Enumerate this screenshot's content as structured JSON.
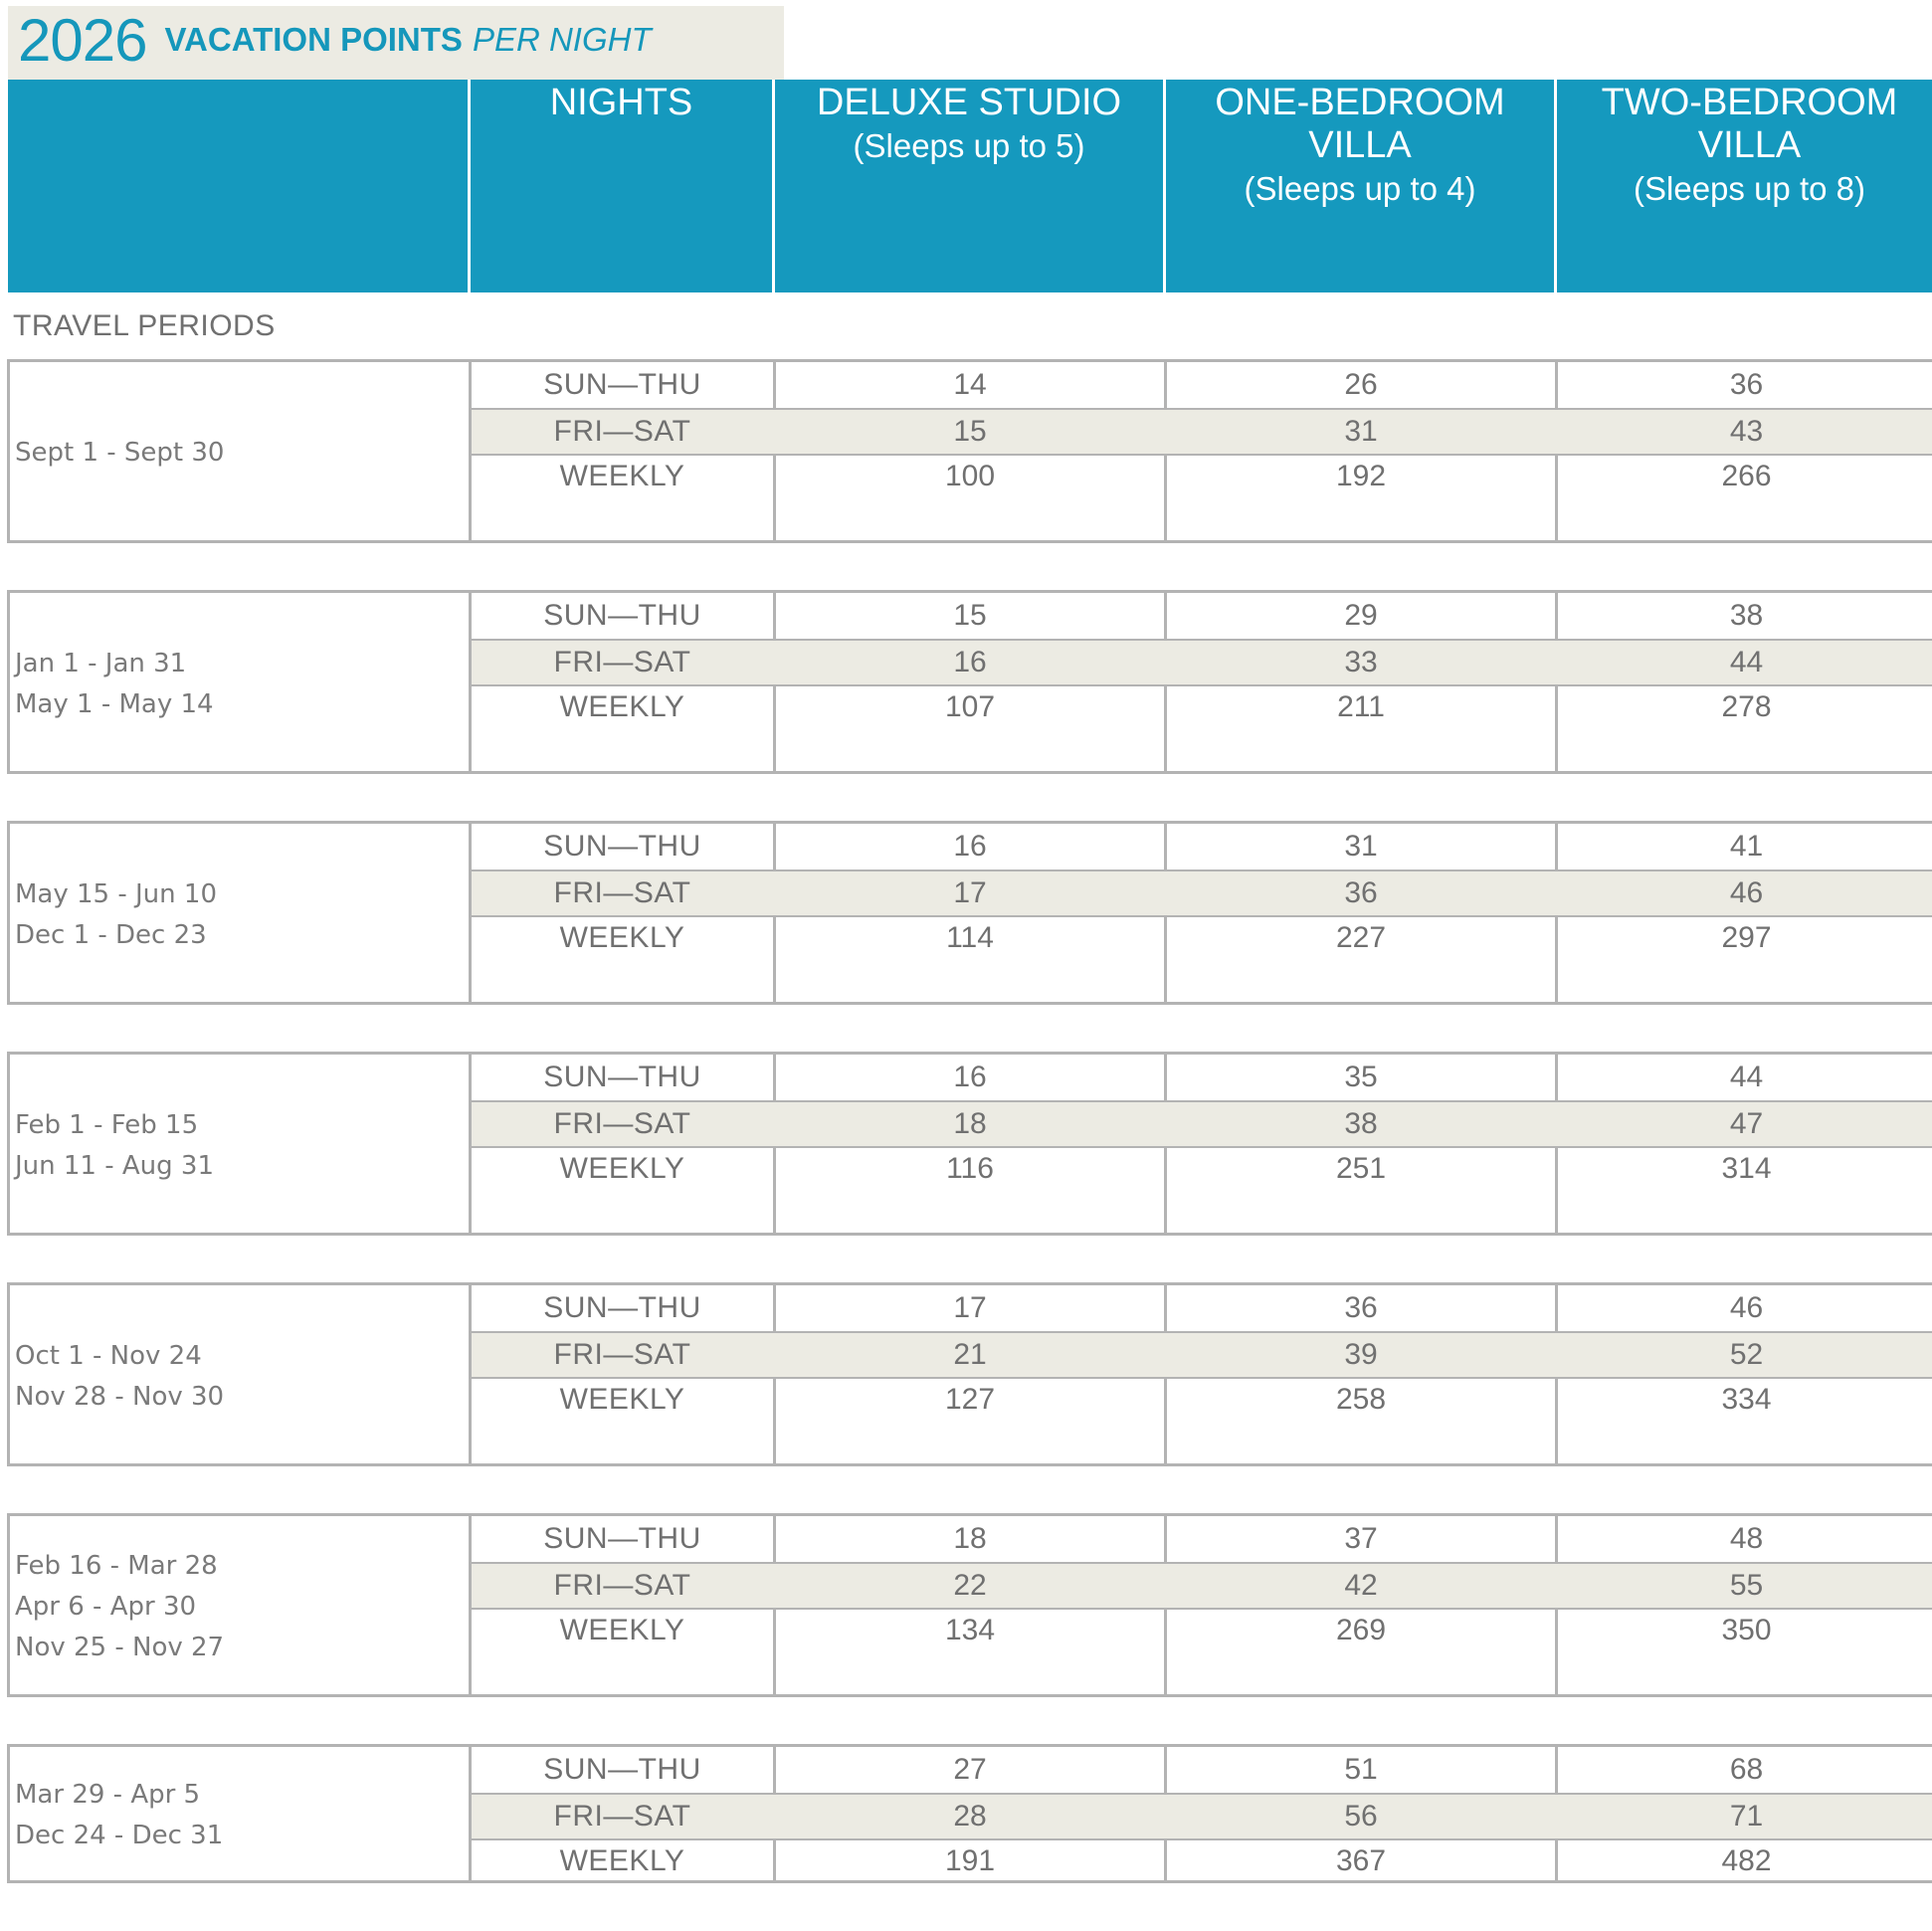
{
  "title": {
    "year": "2026",
    "main": "VACATION POINTS",
    "sub": "PER NIGHT"
  },
  "columns": {
    "nights": {
      "title": "NIGHTS",
      "sub": ""
    },
    "studio": {
      "title": "DELUXE STUDIO",
      "sub": "(Sleeps up to 5)"
    },
    "one_bedroom": {
      "title": "ONE-BEDROOM VILLA",
      "sub": "(Sleeps up to 4)"
    },
    "two_bedroom": {
      "title": "TWO-BEDROOM VILLA",
      "sub": "(Sleeps up to 8)"
    }
  },
  "travel_periods_label": "TRAVEL PERIODS",
  "colors": {
    "header_bg": "#1599be",
    "accent": "#1597bb",
    "band": "#ecebe3",
    "rule": "#b3b3b3"
  },
  "periods": [
    {
      "dates": [
        "Sept 1 - Sept 30"
      ],
      "rows": [
        {
          "nights": "SUN—THU",
          "studio": "14",
          "one": "26",
          "two": "36"
        },
        {
          "nights": "FRI—SAT",
          "studio": "15",
          "one": "31",
          "two": "43"
        },
        {
          "nights": "WEEKLY",
          "studio": "100",
          "one": "192",
          "two": "266"
        }
      ]
    },
    {
      "dates": [
        "Jan 1 - Jan 31",
        "May 1 - May 14"
      ],
      "rows": [
        {
          "nights": "SUN—THU",
          "studio": "15",
          "one": "29",
          "two": "38"
        },
        {
          "nights": "FRI—SAT",
          "studio": "16",
          "one": "33",
          "two": "44"
        },
        {
          "nights": "WEEKLY",
          "studio": "107",
          "one": "211",
          "two": "278"
        }
      ]
    },
    {
      "dates": [
        "May 15 - Jun 10",
        "Dec 1 - Dec 23"
      ],
      "rows": [
        {
          "nights": "SUN—THU",
          "studio": "16",
          "one": "31",
          "two": "41"
        },
        {
          "nights": "FRI—SAT",
          "studio": "17",
          "one": "36",
          "two": "46"
        },
        {
          "nights": "WEEKLY",
          "studio": "114",
          "one": "227",
          "two": "297"
        }
      ]
    },
    {
      "dates": [
        "Feb 1 - Feb 15",
        "Jun 11 - Aug 31"
      ],
      "rows": [
        {
          "nights": "SUN—THU",
          "studio": "16",
          "one": "35",
          "two": "44"
        },
        {
          "nights": "FRI—SAT",
          "studio": "18",
          "one": "38",
          "two": "47"
        },
        {
          "nights": "WEEKLY",
          "studio": "116",
          "one": "251",
          "two": "314"
        }
      ]
    },
    {
      "dates": [
        "Oct 1 - Nov 24",
        "Nov 28 - Nov 30"
      ],
      "rows": [
        {
          "nights": "SUN—THU",
          "studio": "17",
          "one": "36",
          "two": "46"
        },
        {
          "nights": "FRI—SAT",
          "studio": "21",
          "one": "39",
          "two": "52"
        },
        {
          "nights": "WEEKLY",
          "studio": "127",
          "one": "258",
          "two": "334"
        }
      ]
    },
    {
      "dates": [
        "Feb 16 - Mar 28",
        "Apr 6 - Apr 30",
        "Nov 25 - Nov 27"
      ],
      "rows": [
        {
          "nights": "SUN—THU",
          "studio": "18",
          "one": "37",
          "two": "48"
        },
        {
          "nights": "FRI—SAT",
          "studio": "22",
          "one": "42",
          "two": "55"
        },
        {
          "nights": "WEEKLY",
          "studio": "134",
          "one": "269",
          "two": "350"
        }
      ]
    },
    {
      "dates": [
        "Mar 29 - Apr 5",
        "Dec 24 - Dec 31"
      ],
      "rows": [
        {
          "nights": "SUN—THU",
          "studio": "27",
          "one": "51",
          "two": "68"
        },
        {
          "nights": "FRI—SAT",
          "studio": "28",
          "one": "56",
          "two": "71"
        },
        {
          "nights": "WEEKLY",
          "studio": "191",
          "one": "367",
          "two": "482"
        }
      ]
    }
  ]
}
